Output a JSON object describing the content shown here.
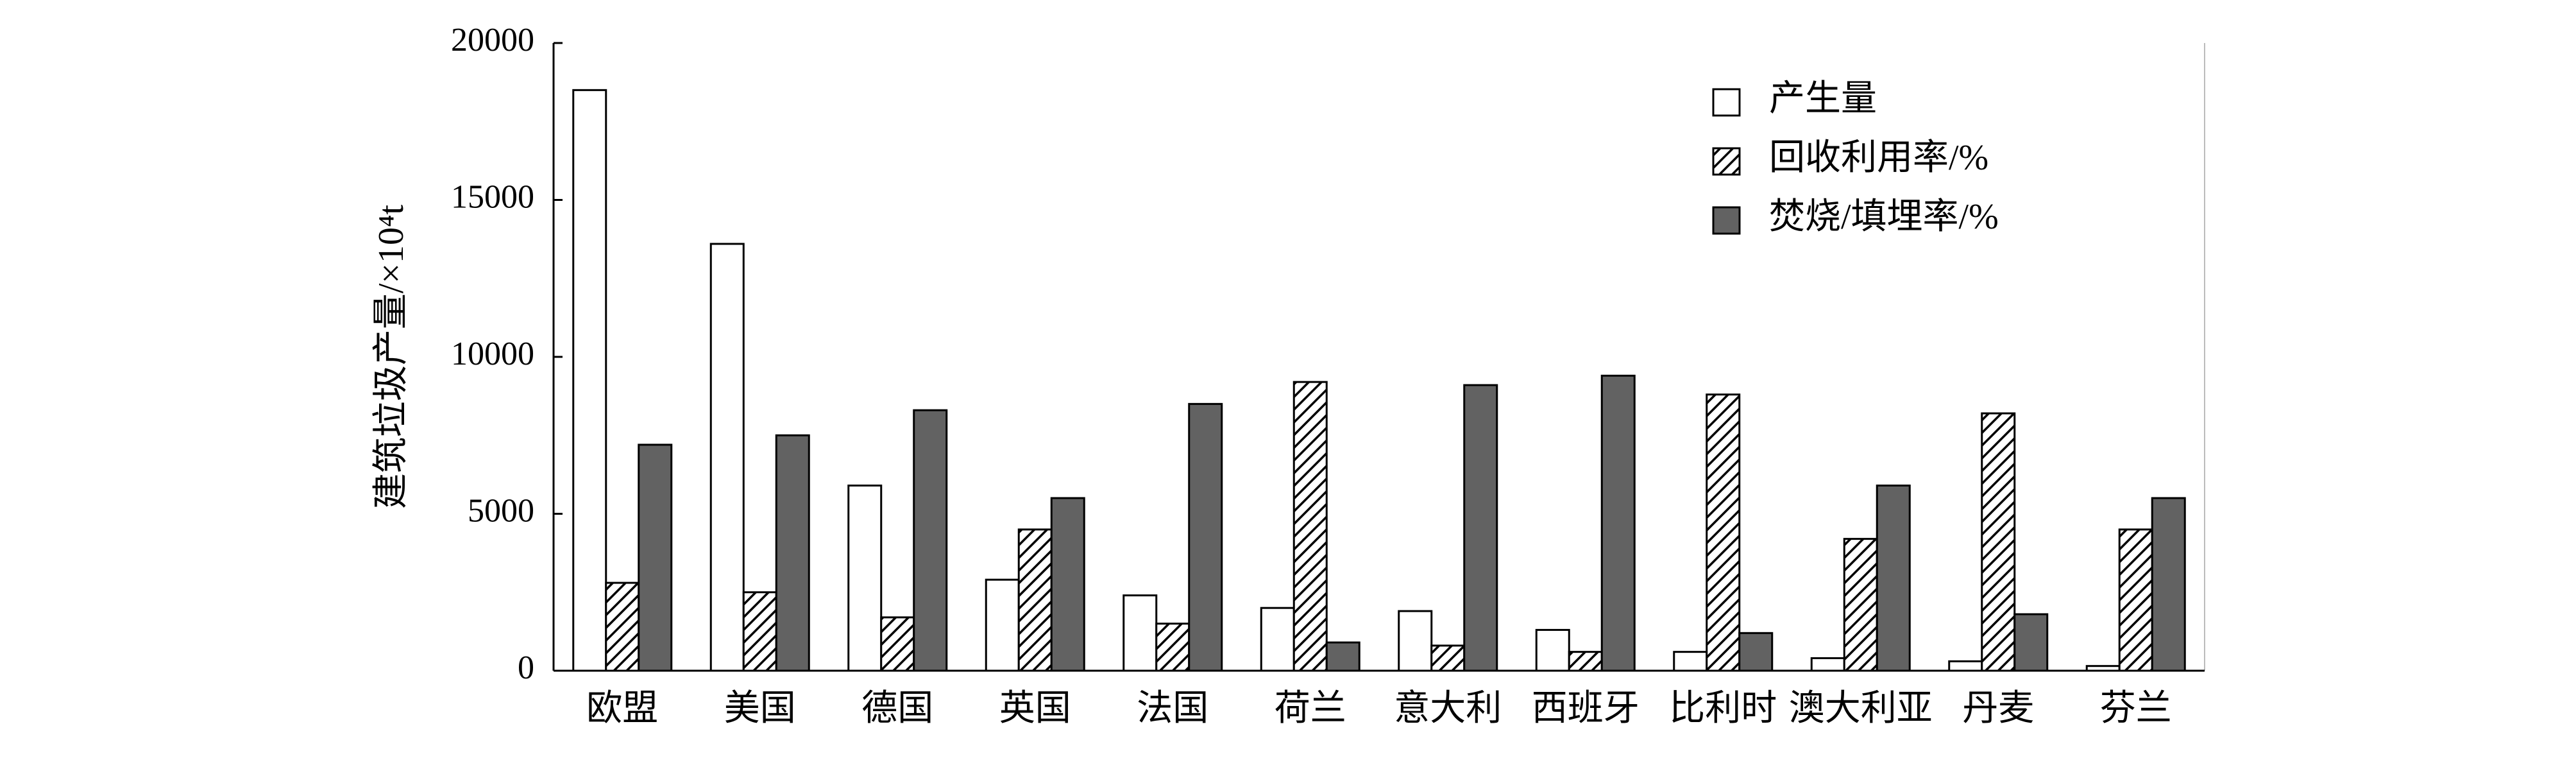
{
  "chart_data": {
    "type": "bar",
    "ylabel": "建筑垃圾产量/×10⁴t",
    "categories": [
      "欧盟",
      "美国",
      "德国",
      "英国",
      "法国",
      "荷兰",
      "意大利",
      "西班牙",
      "比利时",
      "澳大利亚",
      "丹麦",
      "芬兰"
    ],
    "series": [
      {
        "name": "产生量",
        "color": "#ffffff",
        "values": [
          18500,
          13600,
          5900,
          2900,
          2400,
          2000,
          1900,
          1300,
          600,
          400,
          300,
          150
        ]
      },
      {
        "name": "回收利用率/%",
        "color": "#ffffff",
        "pattern": "hatch",
        "values": [
          2800,
          2500,
          1700,
          4500,
          1500,
          9200,
          800,
          600,
          8800,
          4200,
          8200,
          4500
        ]
      },
      {
        "name": "焚烧/填埋率/%",
        "color": "#626262",
        "values": [
          7200,
          7500,
          8300,
          5500,
          8500,
          900,
          9100,
          9400,
          1200,
          5900,
          1800,
          5500
        ]
      }
    ],
    "ylim": [
      0,
      20000
    ],
    "yticks": [
      0,
      5000,
      10000,
      15000,
      20000
    ],
    "legend": "upper right"
  }
}
